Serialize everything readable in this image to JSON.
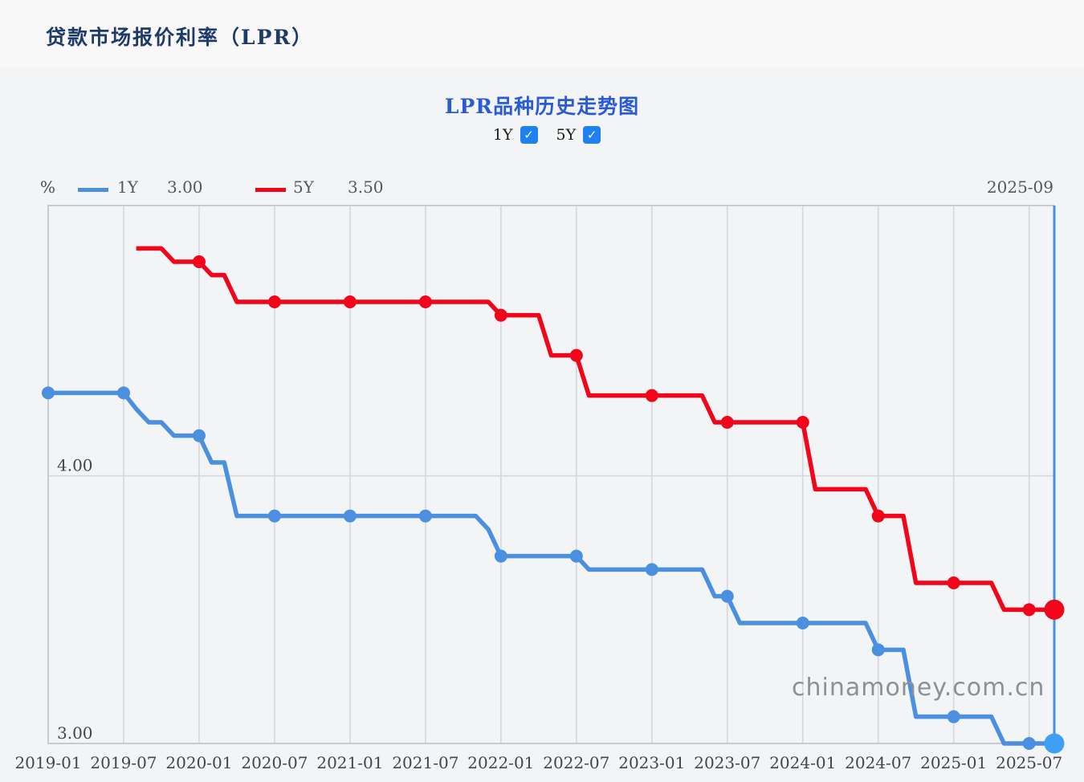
{
  "page": {
    "title": "贷款市场报价利率（LPR）",
    "watermark": "chinamoney.com.cn"
  },
  "chart": {
    "title": "LPR品种历史走势图",
    "unit_label": "%",
    "cursor_date": "2025-09",
    "toggles": [
      {
        "label": "1Y",
        "checked": true
      },
      {
        "label": "5Y",
        "checked": true
      }
    ],
    "legend": [
      {
        "label": "1Y",
        "value": "3.00",
        "color": "#4a8fe0"
      },
      {
        "label": "5Y",
        "value": "3.50",
        "color": "#f2051a"
      }
    ]
  },
  "colors": {
    "checkbox_accent": "#1f80f4",
    "page_bg": "#f3f4f5",
    "header_bg": "#f8f8f8",
    "page_title": "#1d3a68",
    "chart_title": "#2a5ad6",
    "axis_text": "#43464b",
    "legend_text": "#55585d",
    "watermark": "#8f9092"
  },
  "chart_data": {
    "type": "line",
    "title": "LPR品种历史走势图",
    "ylabel": "%",
    "x_start": "2019-01",
    "x_end": "2025-09",
    "x_ticks": [
      "2019-01",
      "2019-07",
      "2020-01",
      "2020-07",
      "2021-01",
      "2021-07",
      "2022-01",
      "2022-07",
      "2023-01",
      "2023-07",
      "2024-01",
      "2024-07",
      "2025-01",
      "2025-07"
    ],
    "ylim": [
      3.0,
      5.01
    ],
    "y_gridlines": [
      4.0
    ],
    "y_tick_labels": [
      {
        "text": "4.00",
        "v": 4.0
      },
      {
        "text": "3.00",
        "v": 3.0
      }
    ],
    "grid_on": true,
    "grid_color": "#d4d7de",
    "frame_color": "#c7cbd3",
    "legend_position": "top-left",
    "cursor": {
      "x": "2025-09",
      "color": "#4a90e2"
    },
    "series": [
      {
        "name": "5Y",
        "color": "#f2051a",
        "end_color": "#f2051a",
        "current_value": 3.5,
        "points": [
          [
            "2019-08",
            4.85
          ],
          [
            "2019-10",
            4.85
          ],
          [
            "2019-11",
            4.8
          ],
          [
            "2020-01",
            4.8
          ],
          [
            "2020-02",
            4.75
          ],
          [
            "2020-03",
            4.75
          ],
          [
            "2020-04",
            4.65
          ],
          [
            "2021-12",
            4.65
          ],
          [
            "2022-01",
            4.6
          ],
          [
            "2022-04",
            4.6
          ],
          [
            "2022-05",
            4.45
          ],
          [
            "2022-07",
            4.45
          ],
          [
            "2022-08",
            4.3
          ],
          [
            "2023-05",
            4.3
          ],
          [
            "2023-06",
            4.2
          ],
          [
            "2024-01",
            4.2
          ],
          [
            "2024-02",
            3.95
          ],
          [
            "2024-06",
            3.95
          ],
          [
            "2024-07",
            3.85
          ],
          [
            "2024-09",
            3.85
          ],
          [
            "2024-10",
            3.6
          ],
          [
            "2025-04",
            3.6
          ],
          [
            "2025-05",
            3.5
          ],
          [
            "2025-09",
            3.5
          ]
        ],
        "markers": [
          "2020-01",
          "2020-07",
          "2021-01",
          "2021-07",
          "2022-01",
          "2022-07",
          "2023-01",
          "2023-07",
          "2024-01",
          "2024-07",
          "2025-01",
          "2025-07"
        ],
        "end_marker": "2025-09"
      },
      {
        "name": "1Y",
        "color": "#4a8fe0",
        "end_color": "#3ea0f4",
        "current_value": 3.0,
        "points": [
          [
            "2019-01",
            4.31
          ],
          [
            "2019-07",
            4.31
          ],
          [
            "2019-08",
            4.25
          ],
          [
            "2019-09",
            4.2
          ],
          [
            "2019-10",
            4.2
          ],
          [
            "2019-11",
            4.15
          ],
          [
            "2020-01",
            4.15
          ],
          [
            "2020-02",
            4.05
          ],
          [
            "2020-03",
            4.05
          ],
          [
            "2020-04",
            3.85
          ],
          [
            "2021-11",
            3.85
          ],
          [
            "2021-12",
            3.8
          ],
          [
            "2022-01",
            3.7
          ],
          [
            "2022-07",
            3.7
          ],
          [
            "2022-08",
            3.65
          ],
          [
            "2023-05",
            3.65
          ],
          [
            "2023-06",
            3.55
          ],
          [
            "2023-07",
            3.55
          ],
          [
            "2023-08",
            3.45
          ],
          [
            "2024-06",
            3.45
          ],
          [
            "2024-07",
            3.35
          ],
          [
            "2024-09",
            3.35
          ],
          [
            "2024-10",
            3.1
          ],
          [
            "2025-04",
            3.1
          ],
          [
            "2025-05",
            3.0
          ],
          [
            "2025-09",
            3.0
          ]
        ],
        "markers": [
          "2019-01",
          "2019-07",
          "2020-01",
          "2020-07",
          "2021-01",
          "2021-07",
          "2022-01",
          "2022-07",
          "2023-01",
          "2023-07",
          "2024-01",
          "2024-07",
          "2025-01",
          "2025-07"
        ],
        "end_marker": "2025-09"
      }
    ]
  }
}
